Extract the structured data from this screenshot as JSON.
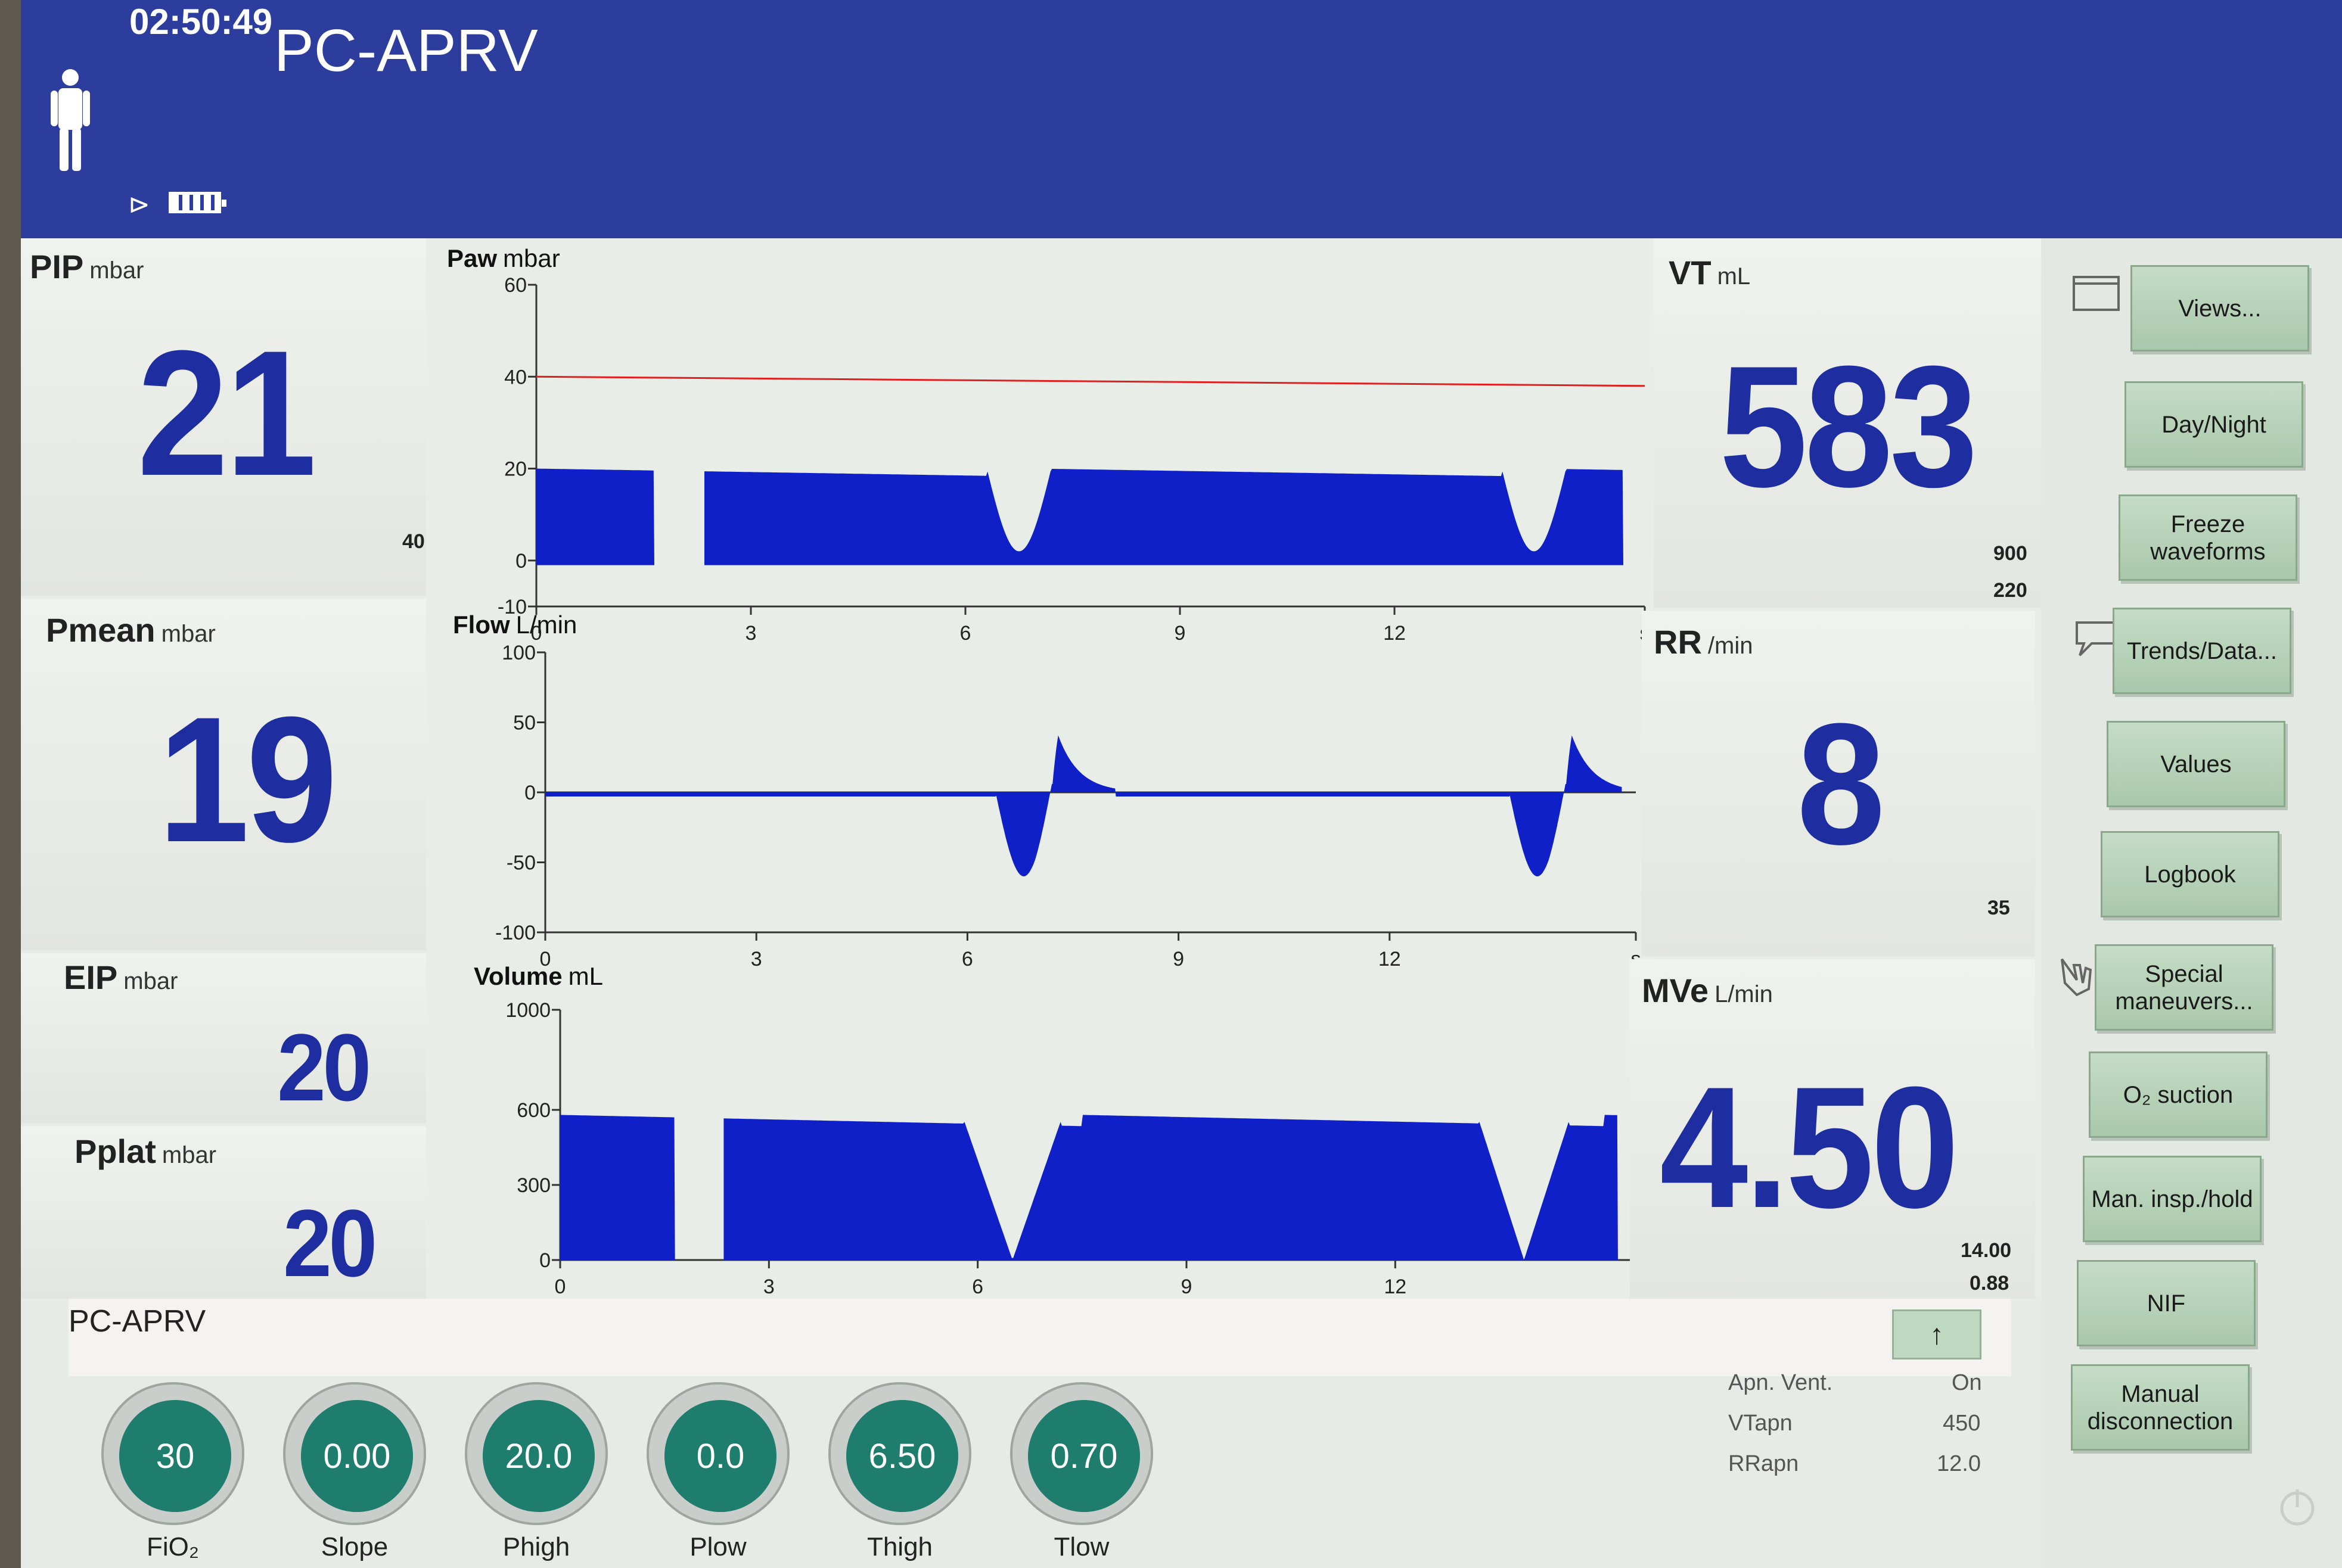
{
  "header": {
    "time": "02:50:49",
    "mode": "PC-APRV",
    "patient_icon": "adult-patient-icon",
    "power_icon": "plug-icon",
    "battery_icon": "battery-icon"
  },
  "params": {
    "pip": {
      "label": "PIP",
      "unit": "mbar",
      "value": "21",
      "limit": "40"
    },
    "pmean": {
      "label": "Pmean",
      "unit": "mbar",
      "value": "19"
    },
    "eip": {
      "label": "EIP",
      "unit": "mbar",
      "value": "20"
    },
    "pplat": {
      "label": "Pplat",
      "unit": "mbar",
      "value": "20"
    },
    "vt": {
      "label": "VT",
      "unit": "mL",
      "value": "583",
      "limit_high": "900",
      "limit_low": "220"
    },
    "rr": {
      "label": "RR",
      "unit": "/min",
      "value": "8",
      "limit": "35"
    },
    "mve": {
      "label": "MVe",
      "unit": "L/min",
      "value": "4.50",
      "limit_high": "14.00",
      "limit_low": "0.88"
    }
  },
  "waveforms": {
    "x_ticks": [
      "0",
      "3",
      "6",
      "9",
      "12",
      "s"
    ],
    "paw": {
      "label": "Paw",
      "unit": "mbar",
      "y_ticks": [
        "60",
        "40",
        "20",
        "0",
        "-10"
      ],
      "ylim": [
        -10,
        60
      ],
      "alarm_line": 38
    },
    "flow": {
      "label": "Flow",
      "unit": "L/min",
      "y_ticks": [
        "100",
        "50",
        "0",
        "-50",
        "-100"
      ],
      "ylim": [
        -100,
        100
      ]
    },
    "volume": {
      "label": "Volume",
      "unit": "mL",
      "y_ticks": [
        "1000",
        "600",
        "300",
        "0"
      ],
      "ylim": [
        0,
        1000
      ]
    }
  },
  "buttons": {
    "views": "Views...",
    "day_night": "Day/Night",
    "freeze": "Freeze waveforms",
    "trends": "Trends/Data...",
    "values": "Values",
    "logbook": "Logbook",
    "special": "Special maneuvers...",
    "o2_suction": "O₂ suction",
    "man_insp": "Man. insp./hold",
    "nif": "NIF",
    "manual_disc": "Manual disconnection"
  },
  "bottom": {
    "mode": "PC-APRV",
    "up_arrow": "↑",
    "knobs": [
      {
        "label": "FiO₂",
        "value": "30"
      },
      {
        "label": "Slope",
        "value": "0.00"
      },
      {
        "label": "Phigh",
        "value": "20.0"
      },
      {
        "label": "Plow",
        "value": "0.0"
      },
      {
        "label": "Thigh",
        "value": "6.50"
      },
      {
        "label": "Tlow",
        "value": "0.70"
      }
    ],
    "apnea": [
      {
        "label": "Apn. Vent.",
        "value": "On"
      },
      {
        "label": "VTapn",
        "value": "450"
      },
      {
        "label": "RRapn",
        "value": "12.0"
      }
    ]
  },
  "colors": {
    "header_blue": "#2d3d9e",
    "value_blue": "#1e2da0",
    "wave_fill": "#1020c8",
    "knob_green": "#1e7d6d",
    "alarm_red": "#e02020"
  }
}
